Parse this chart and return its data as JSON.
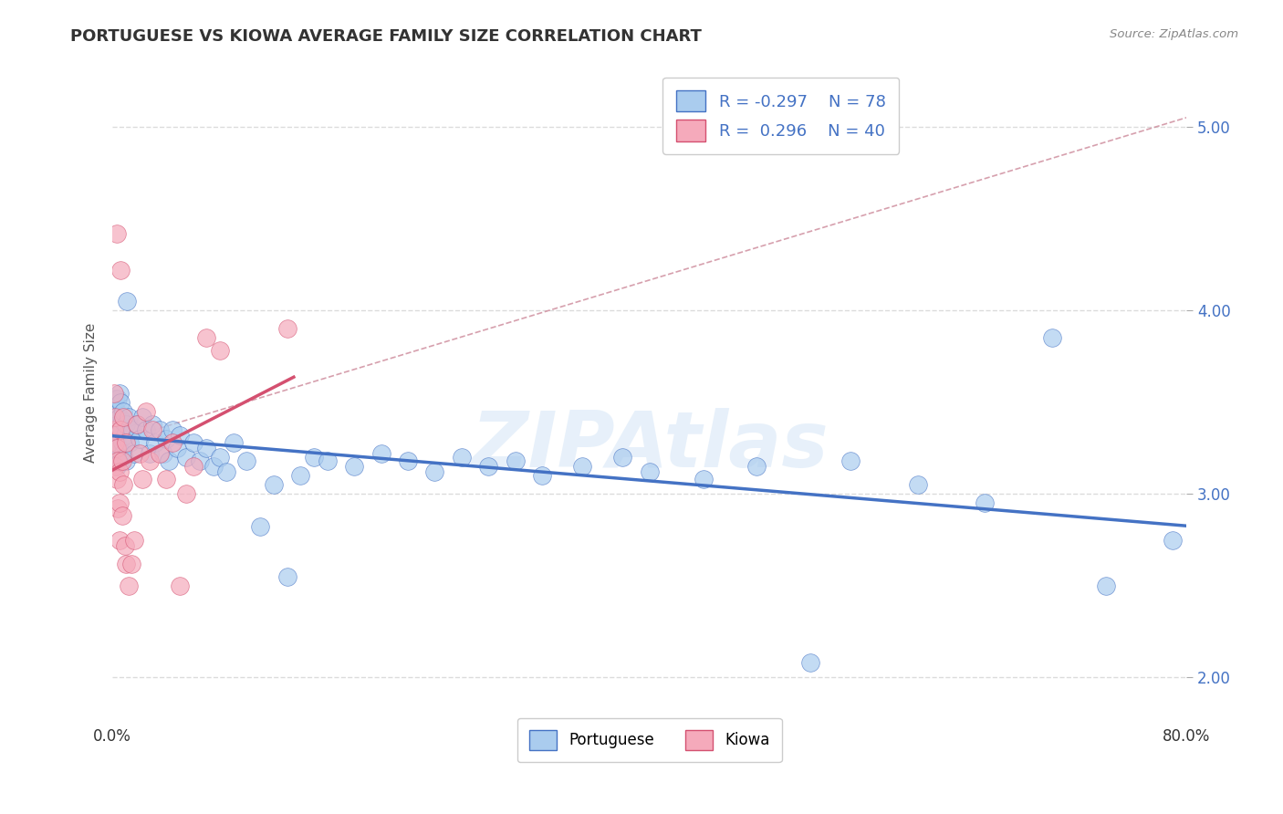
{
  "title": "PORTUGUESE VS KIOWA AVERAGE FAMILY SIZE CORRELATION CHART",
  "source_text": "Source: ZipAtlas.com",
  "ylabel": "Average Family Size",
  "xlim": [
    0.0,
    0.8
  ],
  "ylim": [
    1.75,
    5.35
  ],
  "yticks": [
    2.0,
    3.0,
    4.0,
    5.0
  ],
  "xticks": [
    0.0,
    0.8
  ],
  "xticklabels": [
    "0.0%",
    "80.0%"
  ],
  "background_color": "#ffffff",
  "watermark_text": "ZIPAtlas",
  "portuguese_color": "#aaccee",
  "kiowa_color": "#f5aabb",
  "portuguese_line_color": "#4472c4",
  "kiowa_line_color": "#d45070",
  "trend_dash_color": "#e08090",
  "grid_color": "#cccccc",
  "title_fontsize": 13,
  "axis_label_fontsize": 11,
  "tick_fontsize": 12,
  "portuguese_scatter": [
    [
      0.001,
      3.3
    ],
    [
      0.001,
      3.48
    ],
    [
      0.002,
      3.35
    ],
    [
      0.002,
      3.52
    ],
    [
      0.002,
      3.22
    ],
    [
      0.003,
      3.45
    ],
    [
      0.003,
      3.28
    ],
    [
      0.003,
      3.15
    ],
    [
      0.004,
      3.38
    ],
    [
      0.004,
      3.52
    ],
    [
      0.004,
      3.25
    ],
    [
      0.005,
      3.42
    ],
    [
      0.005,
      3.2
    ],
    [
      0.005,
      3.55
    ],
    [
      0.006,
      3.35
    ],
    [
      0.006,
      3.5
    ],
    [
      0.006,
      3.18
    ],
    [
      0.007,
      3.4
    ],
    [
      0.007,
      3.28
    ],
    [
      0.008,
      3.22
    ],
    [
      0.008,
      3.45
    ],
    [
      0.009,
      3.32
    ],
    [
      0.01,
      3.38
    ],
    [
      0.01,
      3.18
    ],
    [
      0.011,
      4.05
    ],
    [
      0.012,
      3.42
    ],
    [
      0.013,
      3.28
    ],
    [
      0.015,
      3.35
    ],
    [
      0.016,
      3.22
    ],
    [
      0.018,
      3.38
    ],
    [
      0.02,
      3.3
    ],
    [
      0.022,
      3.42
    ],
    [
      0.025,
      3.35
    ],
    [
      0.028,
      3.22
    ],
    [
      0.03,
      3.38
    ],
    [
      0.032,
      3.28
    ],
    [
      0.035,
      3.35
    ],
    [
      0.038,
      3.22
    ],
    [
      0.04,
      3.3
    ],
    [
      0.042,
      3.18
    ],
    [
      0.045,
      3.35
    ],
    [
      0.048,
      3.25
    ],
    [
      0.05,
      3.32
    ],
    [
      0.055,
      3.2
    ],
    [
      0.06,
      3.28
    ],
    [
      0.065,
      3.18
    ],
    [
      0.07,
      3.25
    ],
    [
      0.075,
      3.15
    ],
    [
      0.08,
      3.2
    ],
    [
      0.085,
      3.12
    ],
    [
      0.09,
      3.28
    ],
    [
      0.1,
      3.18
    ],
    [
      0.11,
      2.82
    ],
    [
      0.12,
      3.05
    ],
    [
      0.13,
      2.55
    ],
    [
      0.14,
      3.1
    ],
    [
      0.15,
      3.2
    ],
    [
      0.16,
      3.18
    ],
    [
      0.18,
      3.15
    ],
    [
      0.2,
      3.22
    ],
    [
      0.22,
      3.18
    ],
    [
      0.24,
      3.12
    ],
    [
      0.26,
      3.2
    ],
    [
      0.28,
      3.15
    ],
    [
      0.3,
      3.18
    ],
    [
      0.32,
      3.1
    ],
    [
      0.35,
      3.15
    ],
    [
      0.38,
      3.2
    ],
    [
      0.4,
      3.12
    ],
    [
      0.44,
      3.08
    ],
    [
      0.48,
      3.15
    ],
    [
      0.52,
      2.08
    ],
    [
      0.55,
      3.18
    ],
    [
      0.6,
      3.05
    ],
    [
      0.65,
      2.95
    ],
    [
      0.7,
      3.85
    ],
    [
      0.74,
      2.5
    ],
    [
      0.79,
      2.75
    ]
  ],
  "kiowa_scatter": [
    [
      0.001,
      3.55
    ],
    [
      0.001,
      3.35
    ],
    [
      0.002,
      3.28
    ],
    [
      0.002,
      3.15
    ],
    [
      0.002,
      3.42
    ],
    [
      0.003,
      4.42
    ],
    [
      0.003,
      3.25
    ],
    [
      0.003,
      3.08
    ],
    [
      0.004,
      2.92
    ],
    [
      0.004,
      3.18
    ],
    [
      0.005,
      2.75
    ],
    [
      0.005,
      2.95
    ],
    [
      0.005,
      3.12
    ],
    [
      0.006,
      4.22
    ],
    [
      0.006,
      3.35
    ],
    [
      0.007,
      3.18
    ],
    [
      0.007,
      2.88
    ],
    [
      0.008,
      3.42
    ],
    [
      0.008,
      3.05
    ],
    [
      0.009,
      2.72
    ],
    [
      0.01,
      3.28
    ],
    [
      0.01,
      2.62
    ],
    [
      0.012,
      2.5
    ],
    [
      0.014,
      2.62
    ],
    [
      0.016,
      2.75
    ],
    [
      0.018,
      3.38
    ],
    [
      0.02,
      3.22
    ],
    [
      0.022,
      3.08
    ],
    [
      0.025,
      3.45
    ],
    [
      0.028,
      3.18
    ],
    [
      0.03,
      3.35
    ],
    [
      0.035,
      3.22
    ],
    [
      0.04,
      3.08
    ],
    [
      0.045,
      3.28
    ],
    [
      0.05,
      2.5
    ],
    [
      0.055,
      3.0
    ],
    [
      0.06,
      3.15
    ],
    [
      0.07,
      3.85
    ],
    [
      0.08,
      3.78
    ],
    [
      0.13,
      3.9
    ]
  ]
}
